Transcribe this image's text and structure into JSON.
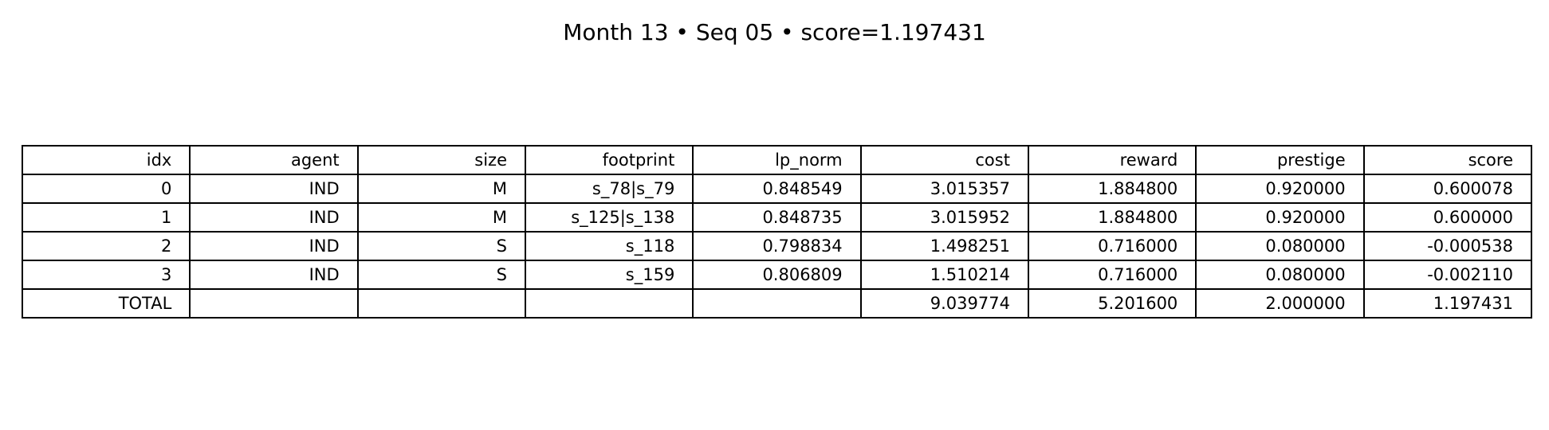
{
  "chart_data": {
    "type": "table",
    "title": "Month 13 • Seq 05 • score=1.197431",
    "columns": [
      "idx",
      "agent",
      "size",
      "footprint",
      "lp_norm",
      "cost",
      "reward",
      "prestige",
      "score"
    ],
    "rows": [
      [
        "0",
        "IND",
        "M",
        "s_78|s_79",
        "0.848549",
        "3.015357",
        "1.884800",
        "0.920000",
        "0.600078"
      ],
      [
        "1",
        "IND",
        "M",
        "s_125|s_138",
        "0.848735",
        "3.015952",
        "1.884800",
        "0.920000",
        "0.600000"
      ],
      [
        "2",
        "IND",
        "S",
        "s_118",
        "0.798834",
        "1.498251",
        "0.716000",
        "0.080000",
        "-0.000538"
      ],
      [
        "3",
        "IND",
        "S",
        "s_159",
        "0.806809",
        "1.510214",
        "0.716000",
        "0.080000",
        "-0.002110"
      ],
      [
        "TOTAL",
        "",
        "",
        "",
        "",
        "9.039774",
        "5.201600",
        "2.000000",
        "1.197431"
      ]
    ]
  }
}
